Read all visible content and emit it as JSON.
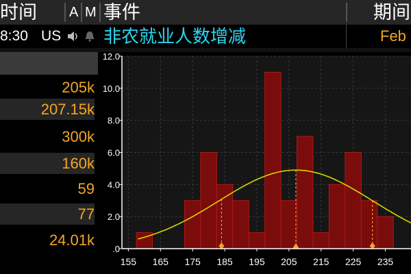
{
  "header": {
    "time": "时间",
    "a": "A",
    "m": "M",
    "event": "事件",
    "period": "期间"
  },
  "event_row": {
    "time": "8:30",
    "country": "US",
    "icons": [
      "speaker-icon",
      "bell-icon"
    ],
    "event": "非农就业人数增减",
    "period": "Feb"
  },
  "stats": [
    "205k",
    "207.15k",
    "300k",
    "160k",
    "59",
    "77",
    "24.01k"
  ],
  "colors": {
    "accent_orange": "#f5a623",
    "event_cyan": "#2fd4f0",
    "bar_fill": "#7a0c0c",
    "bar_edge": "#b01818",
    "curve": "#d8d800",
    "marker": "#f5a623"
  },
  "chart_data": {
    "type": "bar",
    "x_ticks": [
      155,
      165,
      175,
      185,
      195,
      205,
      215,
      225,
      235
    ],
    "y_ticks": [
      ".0",
      "2.0",
      "4.0",
      "6.0",
      "8.0",
      "10.0",
      "12.0"
    ],
    "xlim": [
      153,
      243
    ],
    "ylim": [
      0,
      12
    ],
    "bin_width": 5,
    "bins": [
      {
        "x": 160,
        "y": 1
      },
      {
        "x": 165,
        "y": 0
      },
      {
        "x": 170,
        "y": 0
      },
      {
        "x": 175,
        "y": 3
      },
      {
        "x": 180,
        "y": 6
      },
      {
        "x": 185,
        "y": 4
      },
      {
        "x": 190,
        "y": 3
      },
      {
        "x": 195,
        "y": 1
      },
      {
        "x": 200,
        "y": 11
      },
      {
        "x": 205,
        "y": 3
      },
      {
        "x": 210,
        "y": 7
      },
      {
        "x": 215,
        "y": 1
      },
      {
        "x": 220,
        "y": 4
      },
      {
        "x": 225,
        "y": 6
      },
      {
        "x": 230,
        "y": 3
      },
      {
        "x": 235,
        "y": 2
      }
    ],
    "curve": {
      "mean": 207.15,
      "sd": 24.01,
      "peak": 4.9
    },
    "markers": [
      {
        "x": 184,
        "shape": "diamond"
      },
      {
        "x": 207.15,
        "shape": "triangle"
      },
      {
        "x": 231,
        "shape": "diamond"
      }
    ],
    "grid": true
  }
}
